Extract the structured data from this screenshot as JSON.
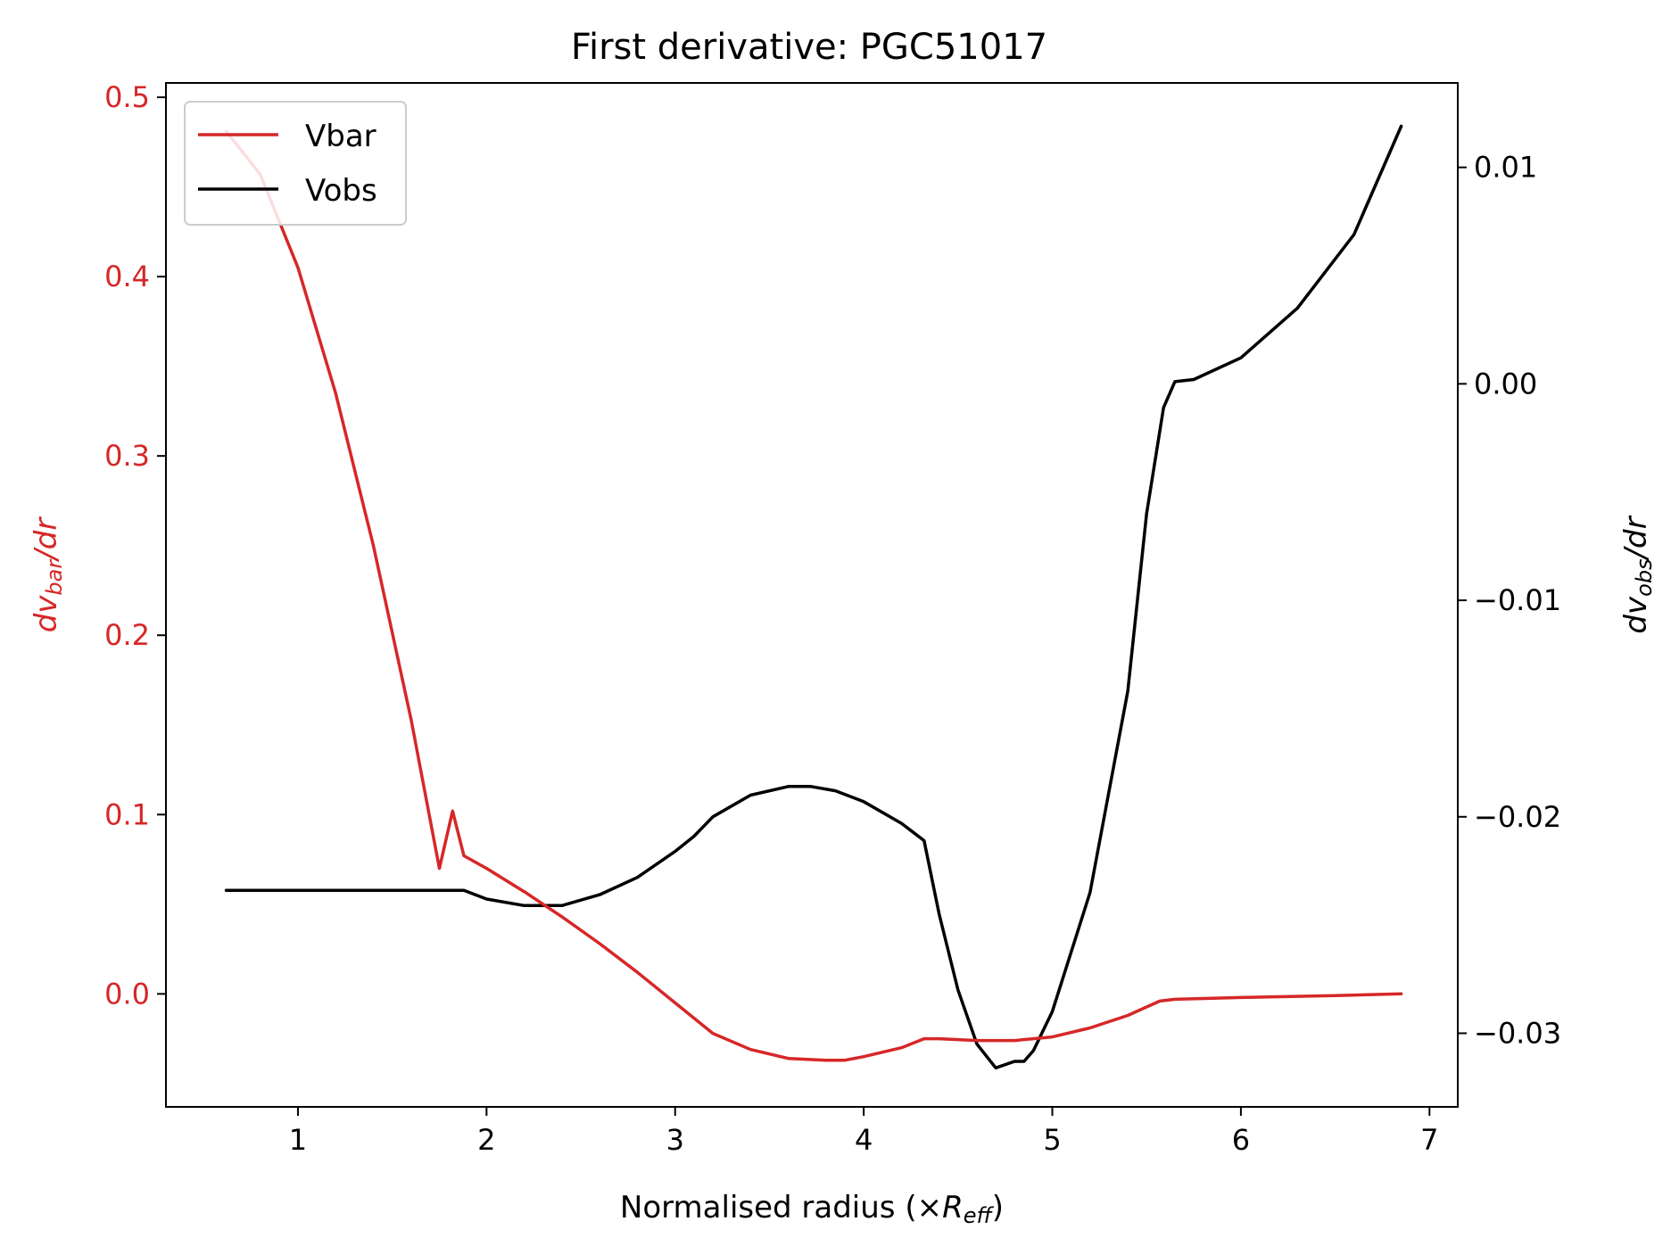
{
  "chart_data": {
    "type": "line",
    "title": "First derivative: PGC51017",
    "xlabel": {
      "main": "Normalised radius (×",
      "sym": "R",
      "sub": "eff",
      "close": ")"
    },
    "ylabel_left": {
      "pre": "dv",
      "sub": "bar",
      "post": "/dr"
    },
    "ylabel_right": {
      "pre": "dv",
      "sub": "obs",
      "post": "/dr"
    },
    "xlim": [
      0.3,
      7.15
    ],
    "ylim_left": [
      -0.063,
      0.508
    ],
    "ylim_right": [
      -0.0334,
      0.0139
    ],
    "x_ticks": [
      1,
      2,
      3,
      4,
      5,
      6,
      7
    ],
    "x_tick_labels": [
      "1",
      "2",
      "3",
      "4",
      "5",
      "6",
      "7"
    ],
    "y_left_ticks": [
      0.0,
      0.1,
      0.2,
      0.3,
      0.4,
      0.5
    ],
    "y_left_tick_labels": [
      "0.0",
      "0.1",
      "0.2",
      "0.3",
      "0.4",
      "0.5"
    ],
    "y_right_ticks": [
      -0.03,
      -0.02,
      -0.01,
      0.0,
      0.01
    ],
    "y_right_tick_labels": [
      "−0.03",
      "−0.02",
      "−0.01",
      "0.00",
      "0.01"
    ],
    "legend_position": "top-left",
    "colors": {
      "vbar": "#d62728",
      "vobs": "#000000"
    },
    "series": [
      {
        "name": "Vbar",
        "axis": "left",
        "x": [
          0.62,
          0.8,
          1.0,
          1.2,
          1.4,
          1.6,
          1.75,
          1.82,
          1.88,
          2.0,
          2.2,
          2.4,
          2.6,
          2.8,
          3.0,
          3.2,
          3.4,
          3.6,
          3.8,
          3.9,
          4.0,
          4.2,
          4.32,
          4.4,
          4.6,
          4.8,
          5.0,
          5.2,
          5.4,
          5.57,
          5.65,
          6.0,
          6.5,
          6.85
        ],
        "y": [
          0.481,
          0.457,
          0.405,
          0.335,
          0.25,
          0.153,
          0.07,
          0.102,
          0.077,
          0.07,
          0.057,
          0.043,
          0.028,
          0.012,
          -0.005,
          -0.022,
          -0.031,
          -0.036,
          -0.037,
          -0.037,
          -0.035,
          -0.03,
          -0.025,
          -0.025,
          -0.026,
          -0.026,
          -0.024,
          -0.019,
          -0.012,
          -0.004,
          -0.003,
          -0.002,
          -0.001,
          0.0
        ]
      },
      {
        "name": "Vobs",
        "axis": "right",
        "x": [
          0.62,
          1.0,
          1.5,
          1.88,
          2.0,
          2.2,
          2.4,
          2.6,
          2.8,
          3.0,
          3.1,
          3.2,
          3.4,
          3.6,
          3.72,
          3.85,
          4.0,
          4.2,
          4.32,
          4.4,
          4.5,
          4.6,
          4.7,
          4.8,
          4.85,
          4.9,
          5.0,
          5.2,
          5.4,
          5.5,
          5.59,
          5.65,
          5.75,
          6.0,
          6.3,
          6.6,
          6.85
        ],
        "y": [
          -0.0234,
          -0.0234,
          -0.0234,
          -0.0234,
          -0.0238,
          -0.0241,
          -0.0241,
          -0.0236,
          -0.0228,
          -0.0216,
          -0.0209,
          -0.02,
          -0.019,
          -0.0186,
          -0.0186,
          -0.0188,
          -0.0193,
          -0.0203,
          -0.0211,
          -0.0245,
          -0.028,
          -0.0305,
          -0.0316,
          -0.0313,
          -0.0313,
          -0.0308,
          -0.029,
          -0.0235,
          -0.0142,
          -0.006,
          -0.0011,
          0.0001,
          0.0002,
          0.0012,
          0.0035,
          0.0069,
          0.0119
        ]
      }
    ]
  }
}
